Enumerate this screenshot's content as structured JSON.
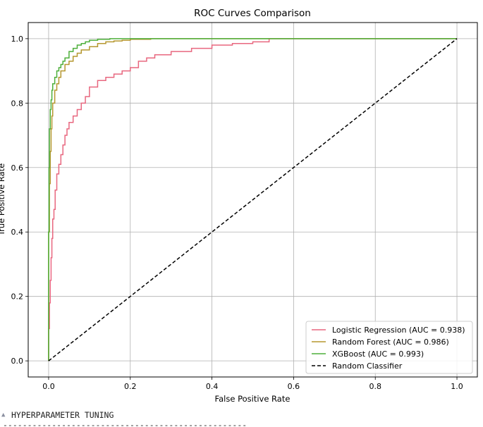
{
  "chart_data": {
    "type": "line",
    "title": "ROC Curves Comparison",
    "xlabel": "False Positive Rate",
    "ylabel": "True Positive Rate",
    "xlim": [
      -0.05,
      1.05
    ],
    "ylim": [
      -0.05,
      1.05
    ],
    "xticks": [
      "0.0",
      "0.2",
      "0.4",
      "0.6",
      "0.8",
      "1.0"
    ],
    "yticks": [
      "0.0",
      "0.2",
      "0.4",
      "0.6",
      "0.8",
      "1.0"
    ],
    "grid": true,
    "legend_position": "lower-right",
    "series": [
      {
        "name": "Logistic Regression (AUC = 0.938)",
        "color": "#e8677f",
        "style": "solid",
        "x": [
          0,
          0.002,
          0.004,
          0.006,
          0.008,
          0.01,
          0.013,
          0.016,
          0.02,
          0.025,
          0.03,
          0.035,
          0.04,
          0.045,
          0.05,
          0.06,
          0.07,
          0.08,
          0.09,
          0.1,
          0.12,
          0.14,
          0.16,
          0.18,
          0.2,
          0.22,
          0.24,
          0.26,
          0.3,
          0.35,
          0.4,
          0.45,
          0.5,
          0.54,
          0.55,
          0.6,
          0.8,
          1.0
        ],
        "y": [
          0,
          0.1,
          0.18,
          0.25,
          0.32,
          0.38,
          0.44,
          0.47,
          0.53,
          0.58,
          0.61,
          0.64,
          0.67,
          0.7,
          0.72,
          0.74,
          0.76,
          0.78,
          0.8,
          0.82,
          0.85,
          0.87,
          0.88,
          0.89,
          0.9,
          0.91,
          0.93,
          0.94,
          0.95,
          0.96,
          0.97,
          0.98,
          0.985,
          0.99,
          1.0,
          1.0,
          1.0,
          1.0
        ]
      },
      {
        "name": "Random Forest (AUC = 0.986)",
        "color": "#b5972f",
        "style": "solid",
        "x": [
          0,
          0.002,
          0.004,
          0.006,
          0.008,
          0.01,
          0.015,
          0.02,
          0.025,
          0.03,
          0.04,
          0.05,
          0.06,
          0.07,
          0.08,
          0.1,
          0.12,
          0.14,
          0.16,
          0.18,
          0.2,
          0.25,
          0.3,
          0.5,
          1.0
        ],
        "y": [
          0,
          0.4,
          0.55,
          0.65,
          0.72,
          0.76,
          0.8,
          0.84,
          0.86,
          0.88,
          0.9,
          0.92,
          0.93,
          0.945,
          0.955,
          0.965,
          0.975,
          0.985,
          0.99,
          0.993,
          0.995,
          0.998,
          1.0,
          1.0,
          1.0
        ]
      },
      {
        "name": "XGBoost (AUC = 0.993)",
        "color": "#4daf3a",
        "style": "solid",
        "x": [
          0,
          0.001,
          0.002,
          0.004,
          0.006,
          0.008,
          0.01,
          0.015,
          0.02,
          0.025,
          0.03,
          0.035,
          0.04,
          0.05,
          0.06,
          0.07,
          0.08,
          0.09,
          0.1,
          0.12,
          0.15,
          0.18,
          0.2,
          1.0
        ],
        "y": [
          0,
          0.4,
          0.6,
          0.72,
          0.78,
          0.81,
          0.84,
          0.86,
          0.88,
          0.9,
          0.91,
          0.92,
          0.93,
          0.94,
          0.96,
          0.97,
          0.98,
          0.985,
          0.99,
          0.995,
          0.998,
          1.0,
          1.0,
          1.0
        ]
      },
      {
        "name": "Random Classifier",
        "color": "#000000",
        "style": "dashed",
        "x": [
          0,
          1
        ],
        "y": [
          0,
          1
        ]
      }
    ]
  },
  "console": {
    "line": "HYPERPARAMETER TUNING",
    "rule": "--------------------------------------------------"
  }
}
